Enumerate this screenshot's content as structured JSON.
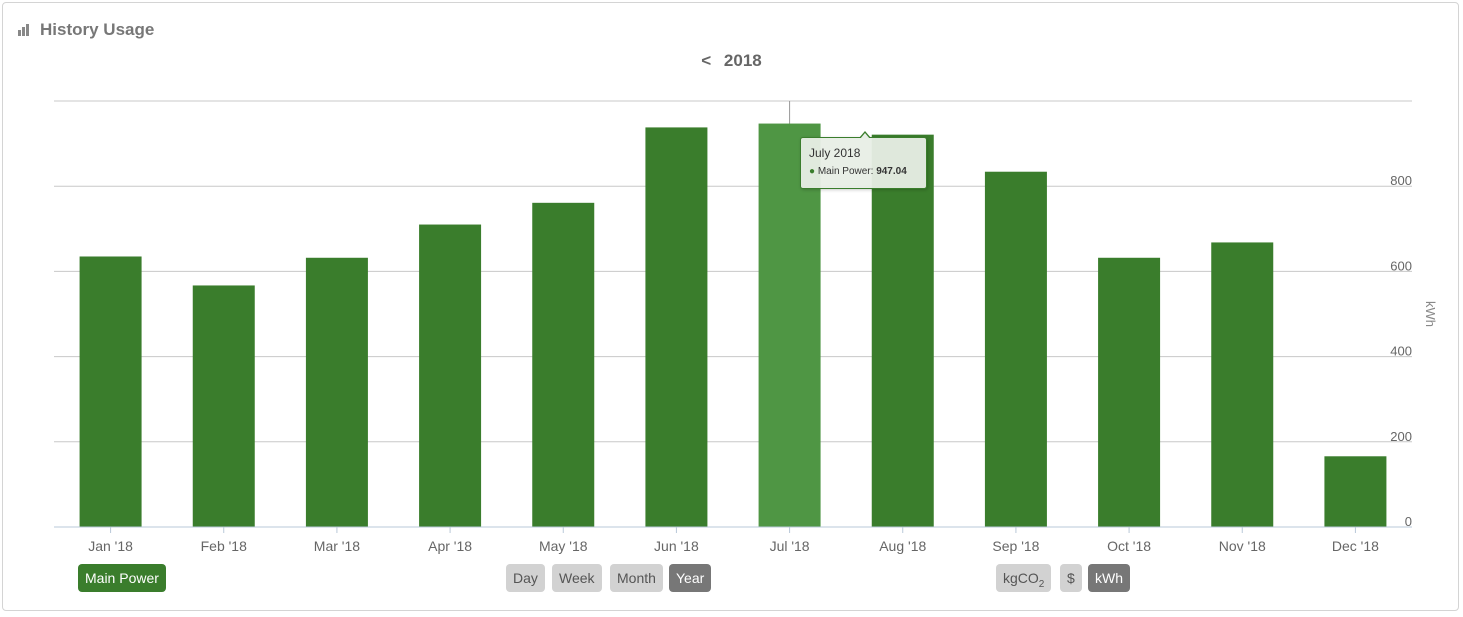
{
  "header": {
    "title": "History Usage",
    "icon": "bar-chart-icon"
  },
  "period": {
    "prev_symbol": "<",
    "label": "2018"
  },
  "colors": {
    "bar": "#3a7d2c",
    "bar_highlight": "#4f9644",
    "grid": "#c8c8c8",
    "axis_text": "#666666"
  },
  "legend": {
    "label": "Main Power"
  },
  "range_buttons": [
    {
      "label": "Day",
      "active": false
    },
    {
      "label": "Week",
      "active": false
    },
    {
      "label": "Month",
      "active": false
    },
    {
      "label": "Year",
      "active": true
    }
  ],
  "unit_buttons": [
    {
      "label": "kgCO",
      "sub": "2",
      "active": false
    },
    {
      "label": "$",
      "sub": "",
      "active": false
    },
    {
      "label": "kWh",
      "sub": "",
      "active": true
    }
  ],
  "tooltip": {
    "title": "July 2018",
    "series": "Main Power:",
    "value": "947.04"
  },
  "chart_data": {
    "type": "bar",
    "categories": [
      "Jan '18",
      "Feb '18",
      "Mar '18",
      "Apr '18",
      "May '18",
      "Jun '18",
      "Jul '18",
      "Aug '18",
      "Sep '18",
      "Oct '18",
      "Nov '18",
      "Dec '18"
    ],
    "series": [
      {
        "name": "Main Power",
        "values": [
          635,
          567,
          632,
          710,
          761,
          938,
          947.04,
          921,
          834,
          632,
          668,
          166
        ]
      }
    ],
    "ylabel": "kWh",
    "ylim": [
      0,
      1000
    ],
    "yticks": [
      0,
      200,
      400,
      600,
      800
    ],
    "y_axis_side": "right",
    "grid": true,
    "highlighted_category": "Jul '18"
  }
}
